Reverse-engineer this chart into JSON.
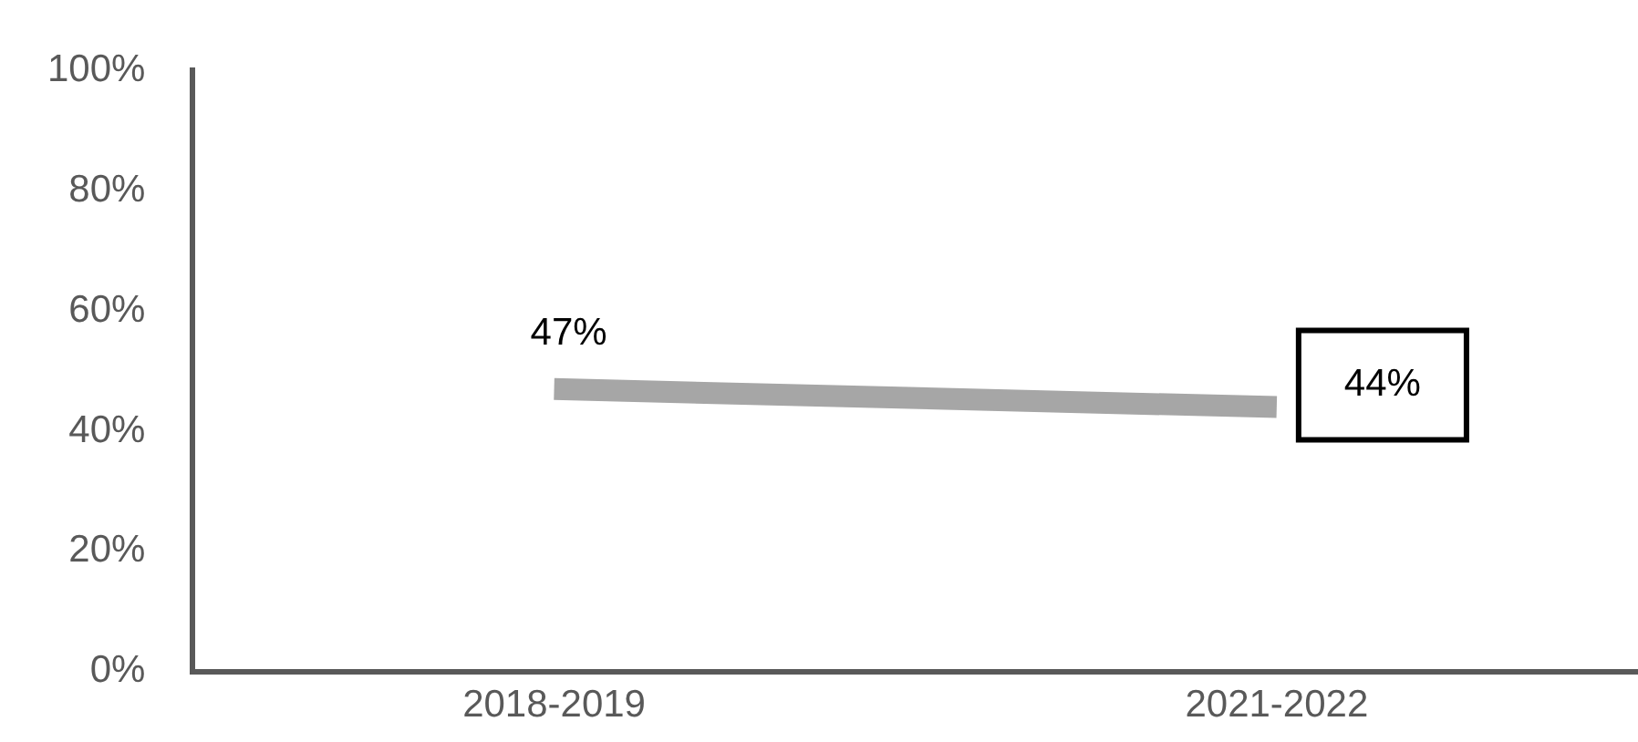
{
  "chart_data": {
    "type": "line",
    "categories": [
      "2018-2019",
      "2021-2022"
    ],
    "series": [
      {
        "color": "#a6a6a6",
        "values": [
          47,
          44
        ],
        "value_labels": [
          "47%",
          "44%"
        ]
      }
    ],
    "ylim": [
      0,
      100
    ],
    "yticks": [
      {
        "value": 0,
        "label": "0%"
      },
      {
        "value": 20,
        "label": "20%"
      },
      {
        "value": 40,
        "label": "40%"
      },
      {
        "value": 60,
        "label": "60%"
      },
      {
        "value": 80,
        "label": "80%"
      },
      {
        "value": 100,
        "label": "100%"
      }
    ],
    "grid": false,
    "legend": false,
    "marker": "none",
    "line_style": "solid"
  }
}
